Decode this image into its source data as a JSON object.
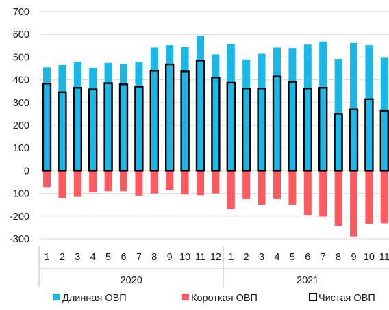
{
  "chart_data": {
    "type": "bar",
    "title": "",
    "xlabel": "",
    "ylabel": "",
    "ylim": [
      -300,
      700
    ],
    "y_ticks": [
      700,
      600,
      500,
      400,
      300,
      200,
      100,
      0,
      -100,
      -200,
      -300
    ],
    "grid": "horizontal",
    "legend_position": "bottom",
    "categories": [
      "1",
      "2",
      "3",
      "4",
      "5",
      "6",
      "7",
      "8",
      "9",
      "10",
      "11",
      "12",
      "1",
      "2",
      "3",
      "4",
      "5",
      "6",
      "7",
      "8",
      "9",
      "10",
      "11"
    ],
    "groups": [
      {
        "label": "2020",
        "count": 12
      },
      {
        "label": "2021",
        "count": 11
      }
    ],
    "series": [
      {
        "name": "Длинная ОВП",
        "color": "#1ab8e8",
        "values": [
          455,
          465,
          480,
          453,
          475,
          470,
          480,
          542,
          552,
          545,
          595,
          512,
          557,
          490,
          515,
          542,
          540,
          555,
          568,
          492,
          562,
          552,
          497
        ]
      },
      {
        "name": "Короткая ОВП",
        "color": "#ff5a5f",
        "values": [
          -72,
          -120,
          -115,
          -95,
          -90,
          -90,
          -110,
          -100,
          -85,
          -105,
          -108,
          -100,
          -170,
          -125,
          -150,
          -125,
          -150,
          -195,
          -202,
          -243,
          -290,
          -235,
          -232
        ]
      },
      {
        "name": "Чистая ОВП",
        "color": "#000000",
        "style": "outline",
        "values": [
          383,
          345,
          365,
          358,
          385,
          380,
          370,
          440,
          468,
          437,
          485,
          410,
          387,
          362,
          362,
          415,
          390,
          362,
          365,
          250,
          270,
          315,
          263
        ]
      }
    ]
  }
}
